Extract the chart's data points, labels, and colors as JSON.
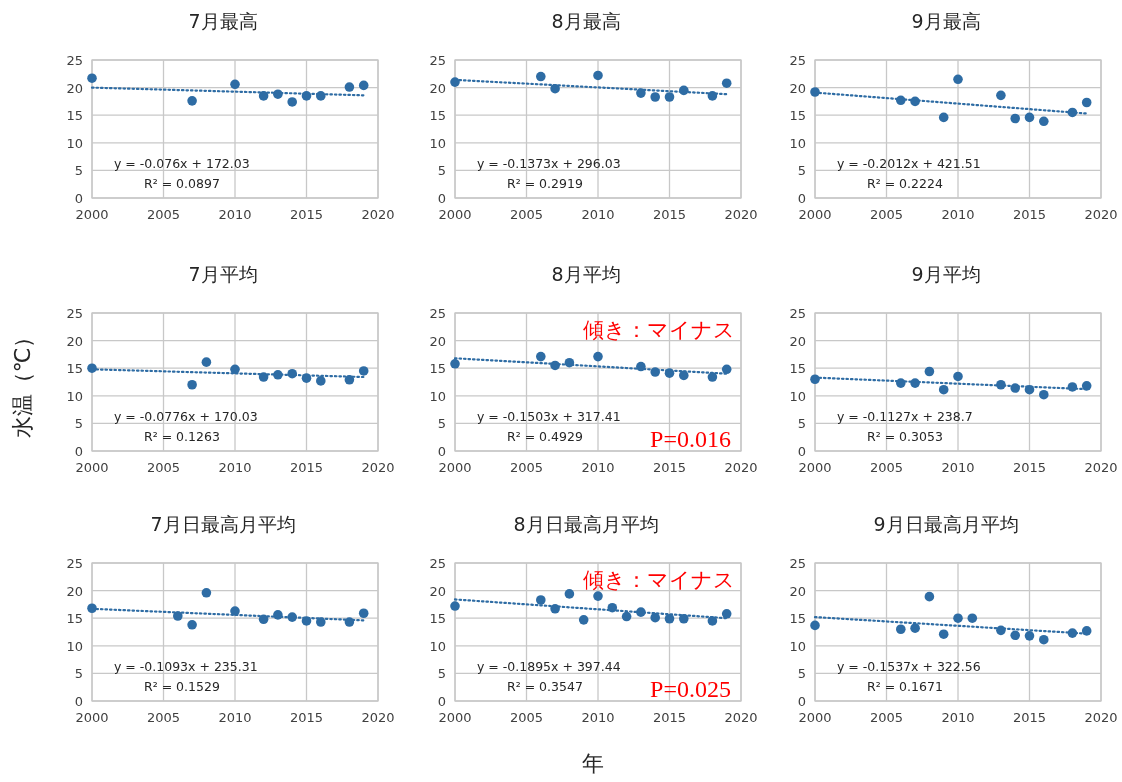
{
  "chart_data": [
    {
      "type": "scatter",
      "title": "7月最高",
      "xlim": [
        2000,
        2020
      ],
      "xticks": [
        2000,
        2005,
        2010,
        2015,
        2020
      ],
      "ylim": [
        0,
        25
      ],
      "yticks": [
        0,
        5,
        10,
        15,
        20,
        25
      ],
      "grid": true,
      "annotations": [
        "y = -0.076x + 172.03",
        "R² = 0.0897"
      ],
      "series": [
        {
          "marker": "circle",
          "color": "#2e6ca4",
          "x": [
            2000,
            2007,
            2010,
            2012,
            2013,
            2014,
            2015,
            2016,
            2018,
            2019
          ],
          "values": [
            21.7,
            17.6,
            20.6,
            18.5,
            18.8,
            17.4,
            18.5,
            18.5,
            20.1,
            20.4
          ]
        },
        {
          "type": "line",
          "line_style": "dotted",
          "color": "#2e6ca4",
          "x": [
            2000,
            2019
          ],
          "values": [
            20.0,
            18.6
          ]
        }
      ]
    },
    {
      "type": "scatter",
      "title": "8月最高",
      "xlim": [
        2000,
        2020
      ],
      "xticks": [
        2000,
        2005,
        2010,
        2015,
        2020
      ],
      "ylim": [
        0,
        25
      ],
      "yticks": [
        0,
        5,
        10,
        15,
        20,
        25
      ],
      "grid": true,
      "annotations": [
        "y = -0.1373x + 296.03",
        "R² = 0.2919"
      ],
      "series": [
        {
          "marker": "circle",
          "color": "#2e6ca4",
          "x": [
            2000,
            2006,
            2007,
            2010,
            2013,
            2014,
            2015,
            2016,
            2018,
            2019
          ],
          "values": [
            21.0,
            22.0,
            19.8,
            22.2,
            19.0,
            18.3,
            18.3,
            19.5,
            18.5,
            20.8
          ]
        },
        {
          "type": "line",
          "line_style": "dotted",
          "color": "#2e6ca4",
          "x": [
            2000,
            2019
          ],
          "values": [
            21.4,
            18.8
          ]
        }
      ]
    },
    {
      "type": "scatter",
      "title": "9月最高",
      "xlim": [
        2000,
        2020
      ],
      "xticks": [
        2000,
        2005,
        2010,
        2015,
        2020
      ],
      "ylim": [
        0,
        25
      ],
      "yticks": [
        0,
        5,
        10,
        15,
        20,
        25
      ],
      "grid": true,
      "annotations": [
        "y = -0.2012x + 421.51",
        "R² = 0.2224"
      ],
      "series": [
        {
          "marker": "circle",
          "color": "#2e6ca4",
          "x": [
            2000,
            2006,
            2007,
            2009,
            2010,
            2013,
            2014,
            2015,
            2016,
            2018,
            2019
          ],
          "values": [
            19.2,
            17.7,
            17.5,
            14.6,
            21.5,
            18.6,
            14.4,
            14.6,
            13.9,
            15.5,
            17.3
          ]
        },
        {
          "type": "line",
          "line_style": "dotted",
          "color": "#2e6ca4",
          "x": [
            2000,
            2019
          ],
          "values": [
            19.1,
            15.3
          ]
        }
      ]
    },
    {
      "type": "scatter",
      "title": "7月平均",
      "ylabel": "水温（℃）",
      "xlim": [
        2000,
        2020
      ],
      "xticks": [
        2000,
        2005,
        2010,
        2015,
        2020
      ],
      "ylim": [
        0,
        25
      ],
      "yticks": [
        0,
        5,
        10,
        15,
        20,
        25
      ],
      "grid": true,
      "annotations": [
        "y = -0.0776x + 170.03",
        "R² = 0.1263"
      ],
      "series": [
        {
          "marker": "circle",
          "color": "#2e6ca4",
          "x": [
            2000,
            2007,
            2008,
            2010,
            2012,
            2013,
            2014,
            2015,
            2016,
            2018,
            2019
          ],
          "values": [
            15.0,
            12.0,
            16.1,
            14.8,
            13.4,
            13.8,
            14.0,
            13.2,
            12.7,
            12.9,
            14.5
          ]
        },
        {
          "type": "line",
          "line_style": "dotted",
          "color": "#2e6ca4",
          "x": [
            2000,
            2019
          ],
          "values": [
            14.8,
            13.4
          ]
        }
      ]
    },
    {
      "type": "scatter",
      "title": "8月平均",
      "xlim": [
        2000,
        2020
      ],
      "xticks": [
        2000,
        2005,
        2010,
        2015,
        2020
      ],
      "ylim": [
        0,
        25
      ],
      "yticks": [
        0,
        5,
        10,
        15,
        20,
        25
      ],
      "grid": true,
      "annotations": [
        "y = -0.1503x + 317.41",
        "R² = 0.4929",
        "傾き：マイナス",
        "P=0.016"
      ],
      "series": [
        {
          "marker": "circle",
          "color": "#2e6ca4",
          "x": [
            2000,
            2006,
            2007,
            2008,
            2010,
            2013,
            2014,
            2015,
            2016,
            2018,
            2019
          ],
          "values": [
            15.8,
            17.1,
            15.5,
            16.0,
            17.1,
            15.3,
            14.3,
            14.1,
            13.7,
            13.4,
            14.8
          ]
        },
        {
          "type": "line",
          "line_style": "dotted",
          "color": "#2e6ca4",
          "x": [
            2000,
            2019
          ],
          "values": [
            16.8,
            14.0
          ]
        }
      ]
    },
    {
      "type": "scatter",
      "title": "9月平均",
      "xlim": [
        2000,
        2020
      ],
      "xticks": [
        2000,
        2005,
        2010,
        2015,
        2020
      ],
      "ylim": [
        0,
        25
      ],
      "yticks": [
        0,
        5,
        10,
        15,
        20,
        25
      ],
      "grid": true,
      "annotations": [
        "y = -0.1127x + 238.7",
        "R² = 0.3053"
      ],
      "series": [
        {
          "marker": "circle",
          "color": "#2e6ca4",
          "x": [
            2000,
            2006,
            2007,
            2008,
            2009,
            2010,
            2013,
            2014,
            2015,
            2016,
            2018,
            2019
          ],
          "values": [
            13.0,
            12.3,
            12.3,
            14.4,
            11.1,
            13.5,
            12.0,
            11.4,
            11.1,
            10.2,
            11.6,
            11.8
          ]
        },
        {
          "type": "line",
          "line_style": "dotted",
          "color": "#2e6ca4",
          "x": [
            2000,
            2019
          ],
          "values": [
            13.3,
            11.2
          ]
        }
      ]
    },
    {
      "type": "scatter",
      "title": "7月日最高月平均",
      "xlim": [
        2000,
        2020
      ],
      "xticks": [
        2000,
        2005,
        2010,
        2015,
        2020
      ],
      "ylim": [
        0,
        25
      ],
      "yticks": [
        0,
        5,
        10,
        15,
        20,
        25
      ],
      "grid": true,
      "annotations": [
        "y = -0.1093x + 235.31",
        "R² = 0.1529"
      ],
      "series": [
        {
          "marker": "circle",
          "color": "#2e6ca4",
          "x": [
            2000,
            2006,
            2007,
            2008,
            2010,
            2012,
            2013,
            2014,
            2015,
            2016,
            2018,
            2019
          ],
          "values": [
            16.8,
            15.4,
            13.8,
            19.6,
            16.3,
            14.8,
            15.6,
            15.2,
            14.5,
            14.3,
            14.3,
            15.9
          ]
        },
        {
          "type": "line",
          "line_style": "dotted",
          "color": "#2e6ca4",
          "x": [
            2000,
            2019
          ],
          "values": [
            16.7,
            14.6
          ]
        }
      ]
    },
    {
      "type": "scatter",
      "title": "8月日最高月平均",
      "xlabel": "年",
      "xlim": [
        2000,
        2020
      ],
      "xticks": [
        2000,
        2005,
        2010,
        2015,
        2020
      ],
      "ylim": [
        0,
        25
      ],
      "yticks": [
        0,
        5,
        10,
        15,
        20,
        25
      ],
      "grid": true,
      "annotations": [
        "y = -0.1895x + 397.44",
        "R² = 0.3547",
        "傾き：マイナス",
        "P=0.025"
      ],
      "series": [
        {
          "marker": "circle",
          "color": "#2e6ca4",
          "x": [
            2000,
            2006,
            2007,
            2008,
            2009,
            2010,
            2011,
            2012,
            2013,
            2014,
            2015,
            2016,
            2018,
            2019
          ],
          "values": [
            17.2,
            18.3,
            16.7,
            19.4,
            14.7,
            19.0,
            16.9,
            15.3,
            16.1,
            15.1,
            14.9,
            14.9,
            14.5,
            15.8
          ]
        },
        {
          "type": "line",
          "line_style": "dotted",
          "color": "#2e6ca4",
          "x": [
            2000,
            2019
          ],
          "values": [
            18.4,
            15.0
          ]
        }
      ]
    },
    {
      "type": "scatter",
      "title": "9月日最高月平均",
      "xlim": [
        2000,
        2020
      ],
      "xticks": [
        2000,
        2005,
        2010,
        2015,
        2020
      ],
      "ylim": [
        0,
        25
      ],
      "yticks": [
        0,
        5,
        10,
        15,
        20,
        25
      ],
      "grid": true,
      "annotations": [
        "y = -0.1537x + 322.56",
        "R² = 0.1671"
      ],
      "series": [
        {
          "marker": "circle",
          "color": "#2e6ca4",
          "x": [
            2000,
            2006,
            2007,
            2008,
            2009,
            2010,
            2011,
            2013,
            2014,
            2015,
            2016,
            2018,
            2019
          ],
          "values": [
            13.7,
            13.0,
            13.2,
            18.9,
            12.1,
            15.0,
            15.0,
            12.8,
            11.9,
            11.8,
            11.1,
            12.3,
            12.7
          ]
        },
        {
          "type": "line",
          "line_style": "dotted",
          "color": "#2e6ca4",
          "x": [
            2000,
            2019
          ],
          "values": [
            15.2,
            12.2
          ]
        }
      ]
    }
  ]
}
